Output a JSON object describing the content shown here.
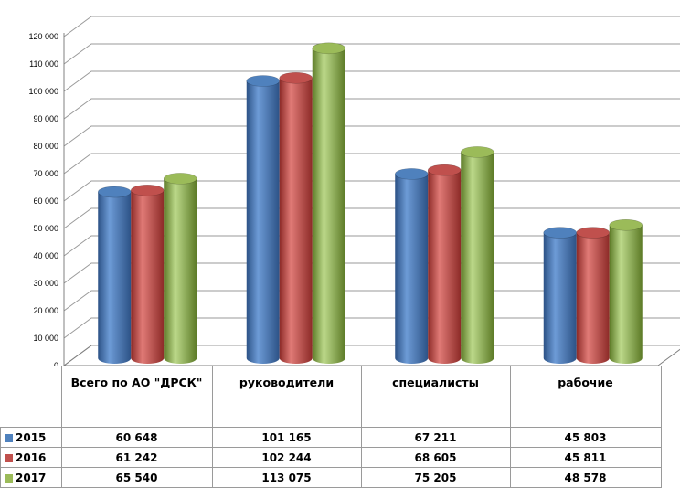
{
  "chart_data": {
    "type": "bar",
    "categories": [
      "Всего по АО \"ДРСК\"",
      "руководители",
      "специалисты",
      "рабочие"
    ],
    "series": [
      {
        "name": "2015",
        "color": "#4f81bd",
        "values": [
          60648,
          101165,
          67211,
          45803
        ],
        "labels": [
          "60 648",
          "101 165",
          "67 211",
          "45 803"
        ]
      },
      {
        "name": "2016",
        "color": "#c0504d",
        "values": [
          61242,
          102244,
          68605,
          45811
        ],
        "labels": [
          "61 242",
          "102 244",
          "68 605",
          "45 811"
        ]
      },
      {
        "name": "2017",
        "color": "#9bbb59",
        "values": [
          65540,
          113075,
          75205,
          48578
        ],
        "labels": [
          "65 540",
          "113 075",
          "75 205",
          "48 578"
        ]
      }
    ],
    "ylim": [
      0,
      120000
    ],
    "yticks": [
      "0",
      "10 000",
      "20 000",
      "30 000",
      "40 000",
      "50 000",
      "60 000",
      "70 000",
      "80 000",
      "90 000",
      "100 000",
      "110 000",
      "120 000"
    ],
    "grid": true,
    "legend": "data-table"
  }
}
